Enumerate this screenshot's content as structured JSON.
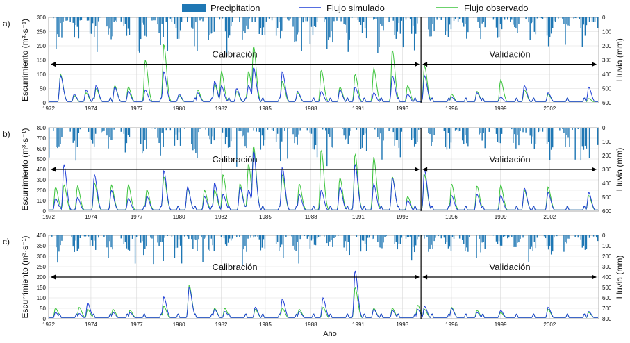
{
  "legend": {
    "precipitation": "Precipitation",
    "simulated": "Flujo simulado",
    "observed": "Flujo observado"
  },
  "colors": {
    "precipitation": "#1f77b4",
    "simulated": "#1f3fd6",
    "observed": "#3cc43c",
    "grid": "#d9d9d9",
    "split": "#000000"
  },
  "xlabel": "Año",
  "ylabel_left": "Escurrimiento (m³·s⁻¹)",
  "ylabel_right": "Lluvia (mm)",
  "period_labels": {
    "calibration": "Calibración",
    "validation": "Validación"
  },
  "chart_data": [
    {
      "type": "line",
      "panel": "a)",
      "xlim": [
        1972,
        2004.5
      ],
      "xticks": [
        "1972",
        "1974",
        "1977",
        "1980",
        "1982",
        "1985",
        "1988",
        "1991",
        "1993",
        "1996",
        "1999",
        "2002"
      ],
      "xtick_values": [
        1972,
        1974.5,
        1977.2,
        1979.7,
        1982.2,
        1984.8,
        1987.5,
        1990.3,
        1992.9,
        1995.8,
        1998.7,
        2001.6
      ],
      "ylim": [
        0,
        300
      ],
      "yticks": [
        0,
        50,
        100,
        150,
        200,
        250,
        300
      ],
      "rain_ylim": [
        0,
        600
      ],
      "rain_yticks": [
        0,
        100,
        200,
        300,
        400,
        500,
        600
      ],
      "split_x": 1994,
      "calibration_arrow_y": 135,
      "peaks": [
        {
          "x": 1972.7,
          "sim": 95,
          "obs": 100
        },
        {
          "x": 1973.5,
          "sim": 30,
          "obs": 25
        },
        {
          "x": 1974.2,
          "sim": 45,
          "obs": 35
        },
        {
          "x": 1974.8,
          "sim": 60,
          "obs": 50
        },
        {
          "x": 1975.9,
          "sim": 55,
          "obs": 60
        },
        {
          "x": 1976.7,
          "sim": 40,
          "obs": 55
        },
        {
          "x": 1977.7,
          "sim": 45,
          "obs": 150
        },
        {
          "x": 1978.8,
          "sim": 110,
          "obs": 205
        },
        {
          "x": 1979.7,
          "sim": 30,
          "obs": 25
        },
        {
          "x": 1980.8,
          "sim": 35,
          "obs": 45
        },
        {
          "x": 1981.8,
          "sim": 75,
          "obs": 65
        },
        {
          "x": 1982.2,
          "sim": 60,
          "obs": 110
        },
        {
          "x": 1983.1,
          "sim": 50,
          "obs": 40
        },
        {
          "x": 1983.8,
          "sim": 60,
          "obs": 110
        },
        {
          "x": 1984.1,
          "sim": 125,
          "obs": 200
        },
        {
          "x": 1985.8,
          "sim": 110,
          "obs": 75
        },
        {
          "x": 1986.7,
          "sim": 40,
          "obs": 35
        },
        {
          "x": 1988.1,
          "sim": 40,
          "obs": 115
        },
        {
          "x": 1989.2,
          "sim": 45,
          "obs": 55
        },
        {
          "x": 1990.1,
          "sim": 55,
          "obs": 100
        },
        {
          "x": 1991.2,
          "sim": 35,
          "obs": 120
        },
        {
          "x": 1992.3,
          "sim": 95,
          "obs": 185
        },
        {
          "x": 1993.2,
          "sim": 30,
          "obs": 60
        },
        {
          "x": 1994.2,
          "sim": 95,
          "obs": 130
        },
        {
          "x": 1995.8,
          "sim": 20,
          "obs": 30
        },
        {
          "x": 1997.3,
          "sim": 35,
          "obs": 40
        },
        {
          "x": 1998.7,
          "sim": 20,
          "obs": 80
        },
        {
          "x": 2000.1,
          "sim": 60,
          "obs": 45
        },
        {
          "x": 2001.5,
          "sim": 35,
          "obs": 30
        },
        {
          "x": 2003.9,
          "sim": 55,
          "obs": 15
        }
      ]
    },
    {
      "type": "line",
      "panel": "b)",
      "xlim": [
        1972,
        2004.5
      ],
      "xticks": [
        "1972",
        "1974",
        "1977",
        "1980",
        "1982",
        "1985",
        "1988",
        "1991",
        "1993",
        "1996",
        "1999",
        "2002"
      ],
      "xtick_values": [
        1972,
        1974.5,
        1977.2,
        1979.7,
        1982.2,
        1984.8,
        1987.5,
        1990.3,
        1992.9,
        1995.8,
        1998.7,
        2001.6
      ],
      "ylim": [
        0,
        800
      ],
      "yticks": [
        0,
        100,
        200,
        300,
        400,
        500,
        600,
        700,
        800
      ],
      "rain_ylim": [
        0,
        600
      ],
      "rain_yticks": [
        0,
        100,
        200,
        300,
        400,
        500,
        600
      ],
      "split_x": 1994,
      "calibration_arrow_y": 400,
      "peaks": [
        {
          "x": 1972.4,
          "sim": 120,
          "obs": 230
        },
        {
          "x": 1972.9,
          "sim": 450,
          "obs": 250
        },
        {
          "x": 1973.7,
          "sim": 130,
          "obs": 240
        },
        {
          "x": 1974.7,
          "sim": 350,
          "obs": 270
        },
        {
          "x": 1975.7,
          "sim": 200,
          "obs": 250
        },
        {
          "x": 1976.7,
          "sim": 120,
          "obs": 250
        },
        {
          "x": 1977.8,
          "sim": 140,
          "obs": 200
        },
        {
          "x": 1978.8,
          "sim": 390,
          "obs": 330
        },
        {
          "x": 1980.2,
          "sim": 230,
          "obs": 220
        },
        {
          "x": 1981.2,
          "sim": 140,
          "obs": 200
        },
        {
          "x": 1981.8,
          "sim": 270,
          "obs": 200
        },
        {
          "x": 1982.3,
          "sim": 160,
          "obs": 350
        },
        {
          "x": 1983.3,
          "sim": 230,
          "obs": 260
        },
        {
          "x": 1983.8,
          "sim": 200,
          "obs": 450
        },
        {
          "x": 1984.1,
          "sim": 580,
          "obs": 630
        },
        {
          "x": 1985.8,
          "sim": 420,
          "obs": 350
        },
        {
          "x": 1986.8,
          "sim": 160,
          "obs": 260
        },
        {
          "x": 1988.1,
          "sim": 200,
          "obs": 590
        },
        {
          "x": 1989.2,
          "sim": 230,
          "obs": 320
        },
        {
          "x": 1990.1,
          "sim": 450,
          "obs": 550
        },
        {
          "x": 1991.2,
          "sim": 260,
          "obs": 520
        },
        {
          "x": 1992.3,
          "sim": 320,
          "obs": 330
        },
        {
          "x": 1993.2,
          "sim": 100,
          "obs": 140
        },
        {
          "x": 1994.2,
          "sim": 400,
          "obs": 350
        },
        {
          "x": 1995.8,
          "sim": 150,
          "obs": 260
        },
        {
          "x": 1997.3,
          "sim": 160,
          "obs": 240
        },
        {
          "x": 1998.7,
          "sim": 150,
          "obs": 250
        },
        {
          "x": 2000.1,
          "sim": 220,
          "obs": 200
        },
        {
          "x": 2001.5,
          "sim": 180,
          "obs": 230
        },
        {
          "x": 2003.9,
          "sim": 180,
          "obs": 150
        }
      ]
    },
    {
      "type": "line",
      "panel": "c)",
      "xlim": [
        1972,
        2004.5
      ],
      "xticks": [
        "1972",
        "1974",
        "1977",
        "1980",
        "1982",
        "1985",
        "1988",
        "1991",
        "1993",
        "1996",
        "1999",
        "2002"
      ],
      "xtick_values": [
        1972,
        1974.5,
        1977.2,
        1979.7,
        1982.2,
        1984.8,
        1987.5,
        1990.3,
        1992.9,
        1995.8,
        1998.7,
        2001.6
      ],
      "ylim": [
        0,
        400
      ],
      "yticks": [
        0,
        50,
        100,
        150,
        200,
        250,
        300,
        350,
        400
      ],
      "rain_ylim": [
        0,
        800
      ],
      "rain_yticks": [
        0,
        100,
        200,
        300,
        400,
        500,
        600,
        700,
        800
      ],
      "split_x": 1994,
      "calibration_arrow_y": 200,
      "peaks": [
        {
          "x": 1972.4,
          "sim": 30,
          "obs": 50
        },
        {
          "x": 1973.8,
          "sim": 25,
          "obs": 55
        },
        {
          "x": 1974.3,
          "sim": 75,
          "obs": 45
        },
        {
          "x": 1975.8,
          "sim": 30,
          "obs": 45
        },
        {
          "x": 1976.8,
          "sim": 30,
          "obs": 40
        },
        {
          "x": 1978.8,
          "sim": 105,
          "obs": 60
        },
        {
          "x": 1980.3,
          "sim": 150,
          "obs": 160
        },
        {
          "x": 1981.8,
          "sim": 45,
          "obs": 50
        },
        {
          "x": 1982.4,
          "sim": 35,
          "obs": 50
        },
        {
          "x": 1984.2,
          "sim": 55,
          "obs": 45
        },
        {
          "x": 1985.8,
          "sim": 95,
          "obs": 50
        },
        {
          "x": 1986.8,
          "sim": 35,
          "obs": 45
        },
        {
          "x": 1988.2,
          "sim": 100,
          "obs": 55
        },
        {
          "x": 1990.1,
          "sim": 230,
          "obs": 150
        },
        {
          "x": 1991.2,
          "sim": 45,
          "obs": 50
        },
        {
          "x": 1992.3,
          "sim": 40,
          "obs": 50
        },
        {
          "x": 1993.8,
          "sim": 45,
          "obs": 65
        },
        {
          "x": 1994.2,
          "sim": 60,
          "obs": 45
        },
        {
          "x": 1995.8,
          "sim": 50,
          "obs": 55
        },
        {
          "x": 1997.3,
          "sim": 30,
          "obs": 40
        },
        {
          "x": 1998.7,
          "sim": 40,
          "obs": 30
        },
        {
          "x": 2001.5,
          "sim": 55,
          "obs": 45
        },
        {
          "x": 2003.9,
          "sim": 35,
          "obs": 30
        }
      ]
    }
  ]
}
